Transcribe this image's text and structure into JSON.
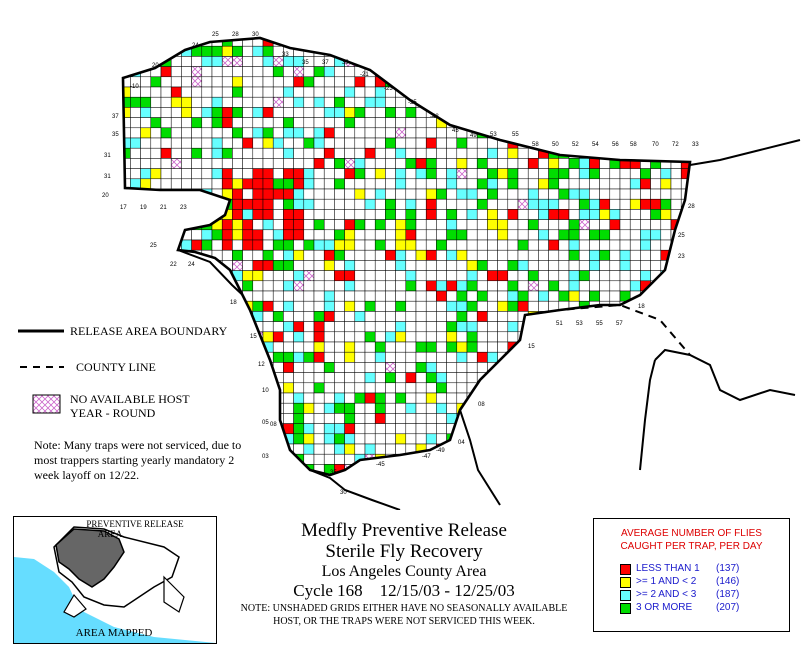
{
  "legend": {
    "boundary_label": "RELEASE AREA BOUNDARY",
    "county_label": "COUNTY LINE",
    "host_label_1": "NO AVAILABLE HOST",
    "host_label_2": "YEAR - ROUND"
  },
  "note_text": "Note: Many traps were not serviced, due to most trappers starting yearly mandatory 2 week layoff on 12/22.",
  "inset": {
    "label_top_1": "PREVENTIVE RELEASE",
    "label_top_2": "AREA",
    "label_bottom": "AREA MAPPED"
  },
  "title": {
    "line1": "Medfly Preventive Release",
    "line2": "Sterile Fly Recovery",
    "line3": "Los Angeles County Area",
    "line4": "Cycle 168    12/15/03 - 12/25/03",
    "note_line1": "NOTE: UNSHADED GRIDS EITHER HAVE NO SEASONALLY AVAILABLE",
    "note_line2": "HOST, OR THE TRAPS WERE NOT SERVICED THIS WEEK."
  },
  "frequency_legend": {
    "header_line1": "AVERAGE NUMBER OF FLIES",
    "header_line2": "CAUGHT PER TRAP, PER DAY",
    "items": [
      {
        "label": "LESS THAN 1",
        "count": "(137)",
        "color": "#ff0000"
      },
      {
        "label": ">= 1 AND < 2",
        "count": "(146)",
        "color": "#ffff00"
      },
      {
        "label": ">= 2 AND < 3",
        "count": "(187)",
        "color": "#66ffff"
      },
      {
        "label": "3 OR MORE",
        "count": "(207)",
        "color": "#00dd00"
      }
    ]
  },
  "grid_labels": {
    "top": [
      "25",
      "28",
      "30",
      "24",
      "33",
      "35",
      "37",
      "39",
      "20",
      "-21",
      "-10",
      "-23",
      "-25",
      "-48",
      "37",
      "45",
      "49",
      "53",
      "55",
      "35",
      "58",
      "50",
      "52",
      "54",
      "56",
      "58",
      "70",
      "72",
      "33",
      "31",
      "31",
      "17",
      "19",
      "21",
      "23",
      "20",
      "28"
    ],
    "left": [
      "25",
      "22",
      "24",
      "18",
      "15",
      "12",
      "10",
      "08",
      "05",
      "03"
    ],
    "right": [
      "25",
      "23",
      "18",
      "51",
      "53",
      "55",
      "57",
      "15",
      "08",
      "04"
    ],
    "bottom": [
      "35",
      "-45",
      "-47",
      "-49",
      "30"
    ]
  },
  "colors": {
    "red": "#ff0000",
    "yellow": "#ffff00",
    "cyan": "#66ffff",
    "green": "#00dd00",
    "host": "#cc66cc"
  }
}
